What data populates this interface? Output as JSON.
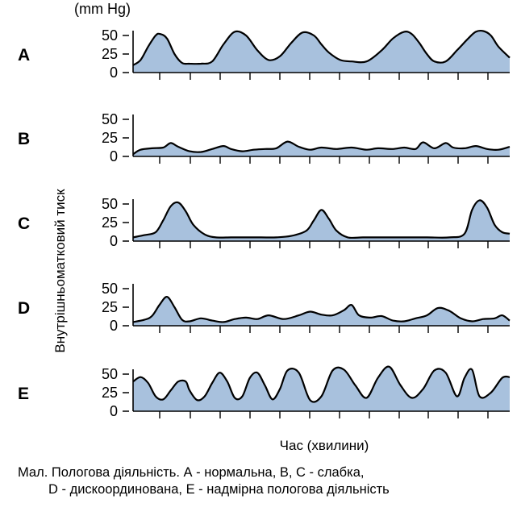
{
  "figure": {
    "unit_label": "(mm Hg)",
    "y_axis_label": "Внутрішньоматковий тиск",
    "x_axis_label": "Час (хвилини)",
    "caption_line1": "Мал. Пологова діяльність. А - нормальна, В, С - слабка,",
    "caption_line2": "D - дискоординована, Е - надмірна пологова діяльність",
    "fill_color": "#a8c1dd",
    "stroke_color": "#000000"
  },
  "chart_data": [
    {
      "type": "area",
      "panel": "A",
      "yticks": [
        "0",
        "25",
        "50"
      ],
      "ylim": [
        0,
        60
      ],
      "xlim": [
        0,
        1
      ],
      "x": [
        0,
        0.02,
        0.04,
        0.06,
        0.072,
        0.09,
        0.11,
        0.13,
        0.15,
        0.18,
        0.21,
        0.24,
        0.27,
        0.3,
        0.33,
        0.36,
        0.39,
        0.42,
        0.45,
        0.48,
        0.5,
        0.52,
        0.55,
        0.58,
        0.62,
        0.66,
        0.69,
        0.72,
        0.74,
        0.76,
        0.78,
        0.8,
        0.83,
        0.86,
        0.89,
        0.91,
        0.93,
        0.95,
        0.97,
        1.0
      ],
      "y": [
        10,
        17,
        35,
        50,
        52,
        46,
        25,
        13,
        12,
        12,
        15,
        38,
        55,
        50,
        30,
        17,
        22,
        40,
        54,
        50,
        38,
        27,
        17,
        15,
        15,
        30,
        46,
        55,
        52,
        40,
        25,
        15,
        15,
        30,
        46,
        55,
        56,
        50,
        35,
        20
      ]
    },
    {
      "type": "area",
      "panel": "B",
      "yticks": [
        "0",
        "25",
        "50"
      ],
      "ylim": [
        0,
        60
      ],
      "xlim": [
        0,
        1
      ],
      "x": [
        0,
        0.02,
        0.05,
        0.08,
        0.1,
        0.12,
        0.15,
        0.18,
        0.21,
        0.24,
        0.26,
        0.29,
        0.32,
        0.35,
        0.38,
        0.41,
        0.44,
        0.47,
        0.5,
        0.54,
        0.58,
        0.62,
        0.65,
        0.69,
        0.72,
        0.75,
        0.77,
        0.8,
        0.83,
        0.85,
        0.88,
        0.91,
        0.94,
        0.97,
        1.0
      ],
      "y": [
        3,
        9,
        11,
        12,
        18,
        13,
        7,
        6,
        10,
        14,
        10,
        7,
        9,
        10,
        11,
        20,
        13,
        9,
        12,
        10,
        12,
        9,
        11,
        10,
        12,
        10,
        19,
        11,
        18,
        12,
        11,
        14,
        10,
        9,
        13
      ]
    },
    {
      "type": "area",
      "panel": "C",
      "yticks": [
        "0",
        "25",
        "50"
      ],
      "ylim": [
        0,
        60
      ],
      "xlim": [
        0,
        1
      ],
      "x": [
        0,
        0.03,
        0.06,
        0.08,
        0.1,
        0.12,
        0.14,
        0.16,
        0.19,
        0.22,
        0.26,
        0.3,
        0.34,
        0.38,
        0.42,
        0.46,
        0.48,
        0.5,
        0.52,
        0.54,
        0.57,
        0.61,
        0.66,
        0.72,
        0.78,
        0.84,
        0.88,
        0.9,
        0.92,
        0.94,
        0.96,
        0.98,
        1.0
      ],
      "y": [
        5,
        8,
        12,
        28,
        47,
        52,
        40,
        22,
        9,
        5,
        5,
        5,
        5,
        5,
        7,
        14,
        28,
        42,
        30,
        14,
        5,
        5,
        5,
        5,
        5,
        5,
        10,
        42,
        55,
        45,
        22,
        12,
        10
      ]
    },
    {
      "type": "area",
      "panel": "D",
      "yticks": [
        "0",
        "25",
        "50"
      ],
      "ylim": [
        0,
        60
      ],
      "xlim": [
        0,
        1
      ],
      "x": [
        0,
        0.03,
        0.05,
        0.07,
        0.09,
        0.11,
        0.13,
        0.15,
        0.18,
        0.21,
        0.24,
        0.27,
        0.3,
        0.33,
        0.36,
        0.4,
        0.44,
        0.47,
        0.5,
        0.53,
        0.56,
        0.58,
        0.6,
        0.63,
        0.66,
        0.69,
        0.72,
        0.75,
        0.78,
        0.81,
        0.84,
        0.87,
        0.9,
        0.93,
        0.96,
        0.98,
        1.0
      ],
      "y": [
        5,
        8,
        13,
        28,
        39,
        25,
        8,
        6,
        10,
        7,
        5,
        9,
        11,
        9,
        14,
        9,
        14,
        19,
        15,
        14,
        21,
        28,
        14,
        11,
        13,
        7,
        6,
        10,
        14,
        24,
        20,
        10,
        6,
        9,
        10,
        14,
        7
      ]
    },
    {
      "type": "area",
      "panel": "E",
      "yticks": [
        "0",
        "25",
        "50"
      ],
      "ylim": [
        0,
        60
      ],
      "xlim": [
        0,
        1
      ],
      "x": [
        0,
        0.02,
        0.04,
        0.06,
        0.08,
        0.1,
        0.12,
        0.14,
        0.15,
        0.17,
        0.19,
        0.21,
        0.23,
        0.25,
        0.27,
        0.29,
        0.31,
        0.33,
        0.35,
        0.37,
        0.39,
        0.41,
        0.44,
        0.47,
        0.5,
        0.53,
        0.56,
        0.59,
        0.62,
        0.65,
        0.68,
        0.71,
        0.74,
        0.77,
        0.8,
        0.83,
        0.86,
        0.88,
        0.9,
        0.92,
        0.95,
        0.98,
        1.0
      ],
      "y": [
        40,
        46,
        38,
        20,
        16,
        28,
        40,
        40,
        28,
        15,
        20,
        38,
        52,
        40,
        18,
        20,
        45,
        52,
        35,
        16,
        30,
        55,
        52,
        15,
        20,
        55,
        56,
        35,
        18,
        45,
        60,
        35,
        18,
        30,
        55,
        52,
        20,
        45,
        56,
        20,
        25,
        45,
        46
      ]
    }
  ]
}
